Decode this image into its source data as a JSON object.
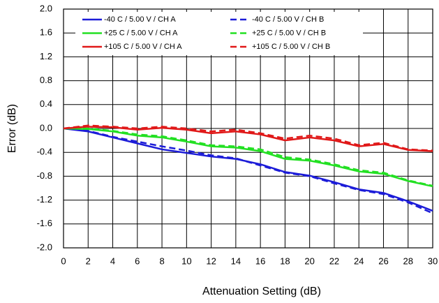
{
  "chart_data": {
    "type": "line",
    "x_label": "Attenuation Setting (dB)",
    "y_label": "Error (dB)",
    "x": [
      0,
      2,
      4,
      6,
      8,
      10,
      12,
      14,
      16,
      18,
      20,
      22,
      24,
      26,
      28,
      30
    ],
    "series": [
      {
        "name": "-40 C / 5.00 V / CH A",
        "color": "#1c1cd8",
        "style": "solid",
        "values": [
          0,
          -0.05,
          -0.15,
          -0.25,
          -0.35,
          -0.41,
          -0.47,
          -0.51,
          -0.6,
          -0.73,
          -0.79,
          -0.9,
          -1.02,
          -1.08,
          -1.22,
          -1.38
        ]
      },
      {
        "name": "-40 C / 5.00 V / CH B",
        "color": "#1c1cd8",
        "style": "dashed",
        "values": [
          0,
          -0.04,
          -0.14,
          -0.22,
          -0.3,
          -0.37,
          -0.45,
          -0.5,
          -0.62,
          -0.74,
          -0.8,
          -0.92,
          -1.03,
          -1.1,
          -1.24,
          -1.42
        ]
      },
      {
        "name": "+25 C / 5.00 V / CH A",
        "color": "#22e022",
        "style": "solid",
        "values": [
          0,
          -0.01,
          -0.05,
          -0.12,
          -0.15,
          -0.22,
          -0.3,
          -0.32,
          -0.38,
          -0.51,
          -0.54,
          -0.62,
          -0.72,
          -0.76,
          -0.88,
          -0.97
        ]
      },
      {
        "name": "+25 C / 5.00 V / CH B",
        "color": "#22e022",
        "style": "dashed",
        "values": [
          0,
          0,
          -0.04,
          -0.1,
          -0.13,
          -0.2,
          -0.28,
          -0.3,
          -0.35,
          -0.48,
          -0.52,
          -0.6,
          -0.7,
          -0.74,
          -0.87,
          -0.96
        ]
      },
      {
        "name": "+105 C / 5.00 V / CH A",
        "color": "#e01818",
        "style": "solid",
        "values": [
          0,
          0.03,
          0.02,
          -0.02,
          0.01,
          -0.02,
          -0.08,
          -0.05,
          -0.1,
          -0.2,
          -0.15,
          -0.2,
          -0.3,
          -0.26,
          -0.36,
          -0.38
        ]
      },
      {
        "name": "+105 C / 5.00 V / CH B",
        "color": "#e01818",
        "style": "dashed",
        "values": [
          0,
          0.05,
          0.03,
          0,
          0.03,
          0,
          -0.05,
          -0.02,
          -0.08,
          -0.17,
          -0.12,
          -0.17,
          -0.28,
          -0.24,
          -0.35,
          -0.37
        ]
      }
    ],
    "xlim": [
      0,
      30
    ],
    "xticks": [
      0,
      2,
      4,
      6,
      8,
      10,
      12,
      14,
      16,
      18,
      20,
      22,
      24,
      26,
      28,
      30
    ],
    "ylim": [
      -2,
      2
    ],
    "yticks": [
      {
        "value": -2,
        "label": "-2.0"
      },
      {
        "value": -1.6,
        "label": "-1.6"
      },
      {
        "value": -1.2,
        "label": "-1.2"
      },
      {
        "value": -0.8,
        "label": "-0.8"
      },
      {
        "value": -0.4,
        "label": "-0.4"
      },
      {
        "value": 0,
        "label": "0.0"
      },
      {
        "value": 0.4,
        "label": "0.4"
      },
      {
        "value": 0.8,
        "label": "0.8"
      },
      {
        "value": 1.2,
        "label": "1.2"
      },
      {
        "value": 1.6,
        "label": "1.6"
      },
      {
        "value": 2,
        "label": "2.0"
      }
    ],
    "grid": true
  }
}
